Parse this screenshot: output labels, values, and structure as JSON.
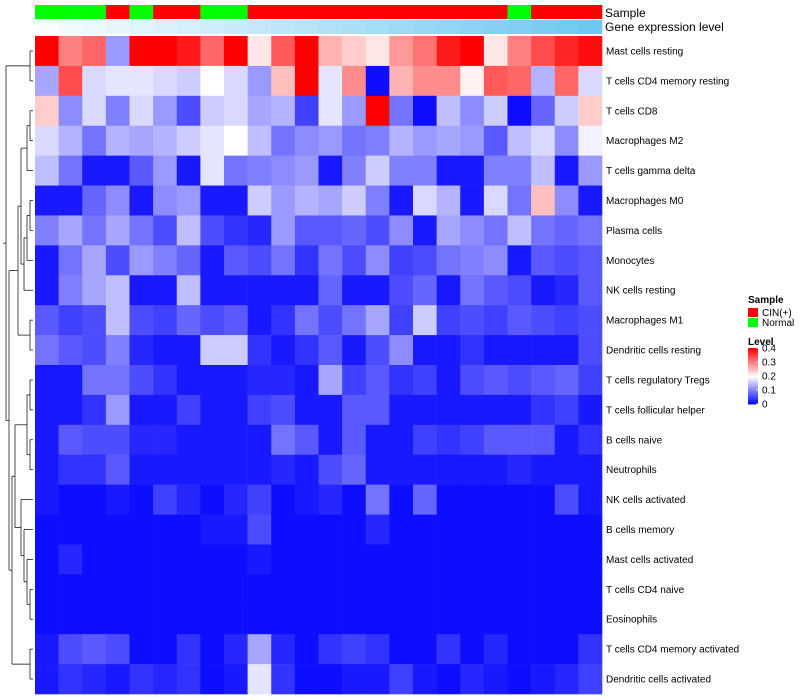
{
  "chart_data": {
    "type": "heatmap",
    "annotation_labels": {
      "sample": "Sample",
      "gene_level": "Gene expression level"
    },
    "sample_legend": {
      "title": "Sample",
      "entries": [
        {
          "label": "CIN(+)",
          "color": "#ff0000"
        },
        {
          "label": "Normal",
          "color": "#00ff00"
        }
      ]
    },
    "level_legend": {
      "title": "Level",
      "ticks": [
        "0.4",
        "0.3",
        "0.2",
        "0.1",
        "0"
      ],
      "tick_values": [
        0.4,
        0.3,
        0.2,
        0.1,
        0
      ],
      "range": [
        0,
        0.4
      ],
      "colors": [
        "#0000ff",
        "#ffffff",
        "#ff0000"
      ]
    },
    "sample_groups": [
      "Normal",
      "Normal",
      "Normal",
      "CIN(+)",
      "Normal",
      "CIN(+)",
      "CIN(+)",
      "Normal",
      "Normal",
      "CIN(+)",
      "CIN(+)",
      "CIN(+)",
      "CIN(+)",
      "CIN(+)",
      "CIN(+)",
      "CIN(+)",
      "CIN(+)",
      "CIN(+)",
      "CIN(+)",
      "CIN(+)",
      "Normal",
      "CIN(+)",
      "CIN(+)",
      "CIN(+)"
    ],
    "gene_expression_level": [
      0.02,
      0.04,
      0.06,
      0.08,
      0.1,
      0.12,
      0.14,
      0.16,
      0.18,
      0.2,
      0.22,
      0.24,
      0.26,
      0.28,
      0.3,
      0.32,
      0.34,
      0.36,
      0.38,
      0.4,
      0.42,
      0.44,
      0.46,
      0.48
    ],
    "rows": [
      "Mast cells resting",
      "T cells CD4 memory resting",
      "T cells CD8",
      "Macrophages M2",
      "T cells gamma delta",
      "Macrophages M0",
      "Plasma cells",
      "Monocytes",
      "NK cells resting",
      "Macrophages M1",
      "Dendritic cells resting",
      "T cells regulatory  Tregs",
      "T cells follicular helper",
      "B cells naive",
      "Neutrophils",
      "NK cells activated",
      "B cells memory",
      "Mast cells activated",
      "T cells CD4 naive",
      "Eosinophils",
      "T cells CD4 memory activated",
      "Dendritic cells activated"
    ],
    "values": [
      [
        0.4,
        0.3,
        0.32,
        0.12,
        0.4,
        0.4,
        0.38,
        0.32,
        0.4,
        0.22,
        0.33,
        0.4,
        0.26,
        0.24,
        0.22,
        0.28,
        0.31,
        0.38,
        0.4,
        0.22,
        0.3,
        0.34,
        0.37,
        0.39
      ],
      [
        0.13,
        0.34,
        0.17,
        0.18,
        0.18,
        0.17,
        0.16,
        0.2,
        0.17,
        0.12,
        0.25,
        0.4,
        0.18,
        0.29,
        0.01,
        0.26,
        0.29,
        0.29,
        0.21,
        0.33,
        0.32,
        0.14,
        0.32,
        0.17
      ],
      [
        0.24,
        0.11,
        0.17,
        0.1,
        0.17,
        0.12,
        0.06,
        0.16,
        0.17,
        0.13,
        0.14,
        0.05,
        0.18,
        0.12,
        0.4,
        0.09,
        0.01,
        0.15,
        0.11,
        0.16,
        0.01,
        0.08,
        0.16,
        0.24
      ],
      [
        0.17,
        0.14,
        0.09,
        0.14,
        0.13,
        0.14,
        0.16,
        0.18,
        0.2,
        0.15,
        0.09,
        0.11,
        0.12,
        0.09,
        0.1,
        0.14,
        0.12,
        0.13,
        0.12,
        0.07,
        0.15,
        0.17,
        0.11,
        0.19
      ],
      [
        0.15,
        0.09,
        0.02,
        0.02,
        0.07,
        0.12,
        0.02,
        0.18,
        0.09,
        0.1,
        0.11,
        0.12,
        0.02,
        0.1,
        0.16,
        0.1,
        0.1,
        0.02,
        0.02,
        0.1,
        0.1,
        0.15,
        0.02,
        0.12
      ],
      [
        0.02,
        0.02,
        0.08,
        0.11,
        0.02,
        0.11,
        0.12,
        0.02,
        0.02,
        0.16,
        0.12,
        0.14,
        0.13,
        0.16,
        0.1,
        0.02,
        0.17,
        0.14,
        0.02,
        0.17,
        0.09,
        0.25,
        0.11,
        0.02
      ],
      [
        0.1,
        0.13,
        0.09,
        0.13,
        0.09,
        0.06,
        0.15,
        0.06,
        0.04,
        0.03,
        0.12,
        0.07,
        0.07,
        0.08,
        0.06,
        0.11,
        0.02,
        0.13,
        0.11,
        0.09,
        0.15,
        0.09,
        0.08,
        0.09
      ],
      [
        0.02,
        0.09,
        0.13,
        0.06,
        0.12,
        0.1,
        0.08,
        0.02,
        0.07,
        0.06,
        0.09,
        0.04,
        0.09,
        0.06,
        0.11,
        0.05,
        0.06,
        0.09,
        0.1,
        0.11,
        0.02,
        0.07,
        0.06,
        0.07
      ],
      [
        0.02,
        0.1,
        0.13,
        0.15,
        0.02,
        0.02,
        0.15,
        0.02,
        0.02,
        0.02,
        0.02,
        0.02,
        0.08,
        0.02,
        0.02,
        0.06,
        0.08,
        0.02,
        0.09,
        0.07,
        0.06,
        0.02,
        0.03,
        0.07
      ],
      [
        0.07,
        0.05,
        0.06,
        0.15,
        0.06,
        0.05,
        0.08,
        0.06,
        0.07,
        0.02,
        0.04,
        0.09,
        0.06,
        0.09,
        0.13,
        0.05,
        0.16,
        0.05,
        0.06,
        0.05,
        0.07,
        0.06,
        0.05,
        0.06
      ],
      [
        0.09,
        0.07,
        0.06,
        0.1,
        0.03,
        0.02,
        0.02,
        0.16,
        0.16,
        0.04,
        0.02,
        0.04,
        0.07,
        0.02,
        0.06,
        0.11,
        0.02,
        0.02,
        0.04,
        0.02,
        0.02,
        0.02,
        0.02,
        0.06
      ],
      [
        0.02,
        0.02,
        0.09,
        0.09,
        0.06,
        0.04,
        0.02,
        0.02,
        0.02,
        0.03,
        0.03,
        0.02,
        0.13,
        0.05,
        0.07,
        0.04,
        0.05,
        0.02,
        0.06,
        0.07,
        0.06,
        0.07,
        0.08,
        0.05
      ],
      [
        0.02,
        0.02,
        0.04,
        0.12,
        0.02,
        0.02,
        0.05,
        0.02,
        0.02,
        0.05,
        0.06,
        0.02,
        0.02,
        0.07,
        0.07,
        0.02,
        0.02,
        0.02,
        0.02,
        0.02,
        0.02,
        0.04,
        0.05,
        0.02
      ],
      [
        0.02,
        0.07,
        0.06,
        0.06,
        0.03,
        0.03,
        0.02,
        0.02,
        0.02,
        0.02,
        0.09,
        0.07,
        0.02,
        0.07,
        0.02,
        0.02,
        0.05,
        0.04,
        0.05,
        0.07,
        0.07,
        0.07,
        0.02,
        0.04
      ],
      [
        0.02,
        0.04,
        0.04,
        0.07,
        0.02,
        0.02,
        0.02,
        0.02,
        0.02,
        0.02,
        0.03,
        0.02,
        0.06,
        0.08,
        0.02,
        0.02,
        0.02,
        0.02,
        0.02,
        0.02,
        0.03,
        0.02,
        0.02,
        0.02
      ],
      [
        0.02,
        0.01,
        0.01,
        0.02,
        0.01,
        0.05,
        0.03,
        0.01,
        0.03,
        0.05,
        0.01,
        0.02,
        0.03,
        0.01,
        0.09,
        0.01,
        0.08,
        0.01,
        0.01,
        0.01,
        0.01,
        0.01,
        0.06,
        0.02
      ],
      [
        0.01,
        0.01,
        0.01,
        0.01,
        0.01,
        0.01,
        0.01,
        0.02,
        0.02,
        0.06,
        0.01,
        0.01,
        0.01,
        0.01,
        0.03,
        0.01,
        0.01,
        0.01,
        0.01,
        0.01,
        0.01,
        0.01,
        0.01,
        0.01
      ],
      [
        0.01,
        0.03,
        0.01,
        0.01,
        0.01,
        0.01,
        0.01,
        0.01,
        0.01,
        0.02,
        0.01,
        0.01,
        0.01,
        0.01,
        0.01,
        0.01,
        0.01,
        0.01,
        0.01,
        0.01,
        0.01,
        0.01,
        0.01,
        0.01
      ],
      [
        0.01,
        0.01,
        0.01,
        0.01,
        0.01,
        0.01,
        0.01,
        0.01,
        0.01,
        0.01,
        0.01,
        0.01,
        0.01,
        0.01,
        0.01,
        0.01,
        0.01,
        0.01,
        0.01,
        0.01,
        0.01,
        0.01,
        0.01,
        0.01
      ],
      [
        0.01,
        0.01,
        0.01,
        0.01,
        0.01,
        0.01,
        0.01,
        0.01,
        0.01,
        0.01,
        0.01,
        0.01,
        0.01,
        0.01,
        0.01,
        0.01,
        0.01,
        0.01,
        0.01,
        0.01,
        0.01,
        0.01,
        0.01,
        0.01
      ],
      [
        0.02,
        0.06,
        0.07,
        0.06,
        0.01,
        0.01,
        0.04,
        0.01,
        0.03,
        0.13,
        0.03,
        0.01,
        0.04,
        0.05,
        0.04,
        0.01,
        0.01,
        0.04,
        0.01,
        0.03,
        0.01,
        0.01,
        0.01,
        0.04
      ],
      [
        0.02,
        0.04,
        0.03,
        0.02,
        0.04,
        0.03,
        0.04,
        0.01,
        0.02,
        0.18,
        0.04,
        0.01,
        0.01,
        0.02,
        0.02,
        0.05,
        0.02,
        0.01,
        0.03,
        0.02,
        0.01,
        0.02,
        0.03,
        0.05
      ]
    ]
  }
}
